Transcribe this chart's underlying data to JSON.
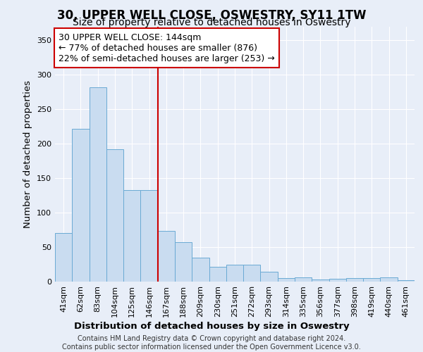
{
  "title": "30, UPPER WELL CLOSE, OSWESTRY, SY11 1TW",
  "subtitle": "Size of property relative to detached houses in Oswestry",
  "xlabel": "Distribution of detached houses by size in Oswestry",
  "ylabel": "Number of detached properties",
  "categories": [
    "41sqm",
    "62sqm",
    "83sqm",
    "104sqm",
    "125sqm",
    "146sqm",
    "167sqm",
    "188sqm",
    "209sqm",
    "230sqm",
    "251sqm",
    "272sqm",
    "293sqm",
    "314sqm",
    "335sqm",
    "356sqm",
    "377sqm",
    "398sqm",
    "419sqm",
    "440sqm",
    "461sqm"
  ],
  "values": [
    70,
    221,
    282,
    192,
    133,
    133,
    73,
    57,
    35,
    21,
    25,
    25,
    14,
    5,
    6,
    3,
    4,
    5,
    5,
    6,
    2
  ],
  "bar_color": "#c9dcf0",
  "bar_edge_color": "#6aaad4",
  "marker_index": 5,
  "marker_color": "#cc0000",
  "annotation_text": "30 UPPER WELL CLOSE: 144sqm\n← 77% of detached houses are smaller (876)\n22% of semi-detached houses are larger (253) →",
  "annotation_box_color": "#ffffff",
  "annotation_box_edge": "#cc0000",
  "ylim": [
    0,
    370
  ],
  "yticks": [
    0,
    50,
    100,
    150,
    200,
    250,
    300,
    350
  ],
  "footer_text": "Contains HM Land Registry data © Crown copyright and database right 2024.\nContains public sector information licensed under the Open Government Licence v3.0.",
  "background_color": "#e8eef8",
  "grid_color": "#ffffff",
  "title_fontsize": 12,
  "subtitle_fontsize": 10,
  "axis_label_fontsize": 9.5,
  "tick_fontsize": 8,
  "annotation_fontsize": 9,
  "footer_fontsize": 7
}
